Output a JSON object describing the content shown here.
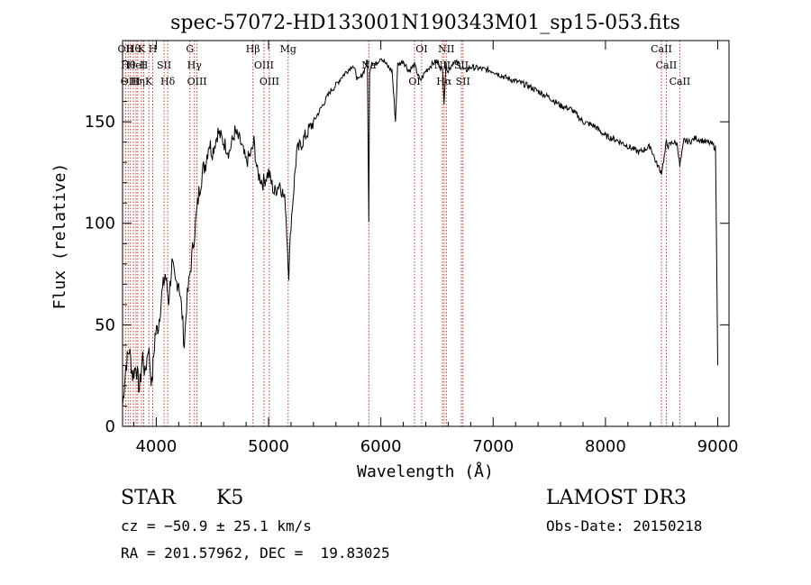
{
  "chart_data": {
    "type": "line",
    "title": "spec-57072-HD133001N190343M01_sp15-053.fits",
    "xlabel": "Wavelength (Å)",
    "ylabel": "Flux (relative)",
    "xlim": [
      3700,
      9100
    ],
    "ylim": [
      0,
      190
    ],
    "xticks": [
      4000,
      5000,
      6000,
      7000,
      8000,
      9000
    ],
    "yticks": [
      0,
      50,
      100,
      150
    ],
    "grid": false,
    "series": [
      {
        "name": "flux",
        "x": [
          3700,
          3730,
          3760,
          3790,
          3820,
          3850,
          3880,
          3900,
          3930,
          3960,
          3990,
          4020,
          4050,
          4080,
          4110,
          4140,
          4170,
          4200,
          4230,
          4250,
          4270,
          4290,
          4310,
          4330,
          4350,
          4380,
          4410,
          4440,
          4470,
          4500,
          4550,
          4600,
          4650,
          4700,
          4750,
          4800,
          4850,
          4870,
          4900,
          4950,
          5000,
          5050,
          5100,
          5150,
          5180,
          5200,
          5250,
          5300,
          5350,
          5400,
          5450,
          5500,
          5550,
          5600,
          5650,
          5700,
          5750,
          5800,
          5850,
          5880,
          5893,
          5900,
          5920,
          5950,
          6000,
          6050,
          6100,
          6130,
          6150,
          6200,
          6250,
          6300,
          6350,
          6400,
          6450,
          6500,
          6550,
          6563,
          6580,
          6600,
          6650,
          6700,
          6750,
          6800,
          6900,
          7000,
          7100,
          7200,
          7300,
          7400,
          7500,
          7600,
          7700,
          7800,
          7900,
          8000,
          8100,
          8200,
          8300,
          8400,
          8450,
          8498,
          8530,
          8542,
          8560,
          8600,
          8640,
          8662,
          8700,
          8750,
          8800,
          8850,
          8900,
          8950,
          8980,
          9000
        ],
        "y": [
          10,
          30,
          38,
          25,
          30,
          18,
          35,
          25,
          40,
          20,
          45,
          50,
          65,
          75,
          62,
          80,
          70,
          72,
          55,
          40,
          60,
          70,
          80,
          90,
          100,
          115,
          125,
          130,
          140,
          135,
          145,
          140,
          135,
          145,
          140,
          130,
          135,
          140,
          125,
          120,
          125,
          115,
          120,
          110,
          75,
          100,
          135,
          140,
          145,
          150,
          155,
          160,
          165,
          168,
          172,
          175,
          178,
          170,
          175,
          180,
          100,
          175,
          180,
          178,
          182,
          178,
          175,
          150,
          178,
          180,
          175,
          178,
          170,
          175,
          178,
          180,
          175,
          160,
          178,
          175,
          180,
          178,
          175,
          177,
          176,
          175,
          172,
          170,
          168,
          165,
          162,
          158,
          156,
          150,
          148,
          143,
          141,
          138,
          135,
          138,
          130,
          125,
          135,
          140,
          138,
          140,
          139,
          128,
          141,
          140,
          142,
          141,
          140,
          139,
          137,
          30
        ]
      }
    ],
    "lines": [
      {
        "w": 3727,
        "labels": [
          "OII"
        ]
      },
      {
        "w": 3750,
        "labels": [
          "Hθ"
        ]
      },
      {
        "w": 3770,
        "labels": [
          "OIII"
        ]
      },
      {
        "w": 3797,
        "labels": [
          "Hθ"
        ]
      },
      {
        "w": 3820,
        "labels": [
          "HeI"
        ]
      },
      {
        "w": 3835,
        "labels": [
          "Hη"
        ]
      },
      {
        "w": 3869,
        "labels": [
          "K"
        ]
      },
      {
        "w": 3889,
        "labels": [
          "H"
        ]
      },
      {
        "w": 3934,
        "labels": [
          "K"
        ]
      },
      {
        "w": 3969,
        "labels": [
          "H"
        ]
      },
      {
        "w": 4070,
        "labels": [
          "SII"
        ]
      },
      {
        "w": 4102,
        "labels": [
          "Hδ"
        ]
      },
      {
        "w": 4300,
        "labels": [
          "G"
        ]
      },
      {
        "w": 4340,
        "labels": [
          "Hγ"
        ]
      },
      {
        "w": 4363,
        "labels": [
          "OIII"
        ]
      },
      {
        "w": 4861,
        "labels": [
          "Hβ"
        ]
      },
      {
        "w": 4959,
        "labels": [
          "OIII"
        ]
      },
      {
        "w": 5007,
        "labels": [
          "OIII"
        ]
      },
      {
        "w": 5175,
        "labels": [
          "Mg"
        ]
      },
      {
        "w": 5893,
        "labels": [
          "Na"
        ]
      },
      {
        "w": 6300,
        "labels": [
          "OI"
        ]
      },
      {
        "w": 6363,
        "labels": [
          "OI"
        ]
      },
      {
        "w": 6548,
        "labels": [
          "NII"
        ]
      },
      {
        "w": 6563,
        "labels": [
          "Hα"
        ]
      },
      {
        "w": 6583,
        "labels": [
          "NII"
        ]
      },
      {
        "w": 6717,
        "labels": [
          "SII"
        ]
      },
      {
        "w": 6731,
        "labels": [
          "SII"
        ]
      },
      {
        "w": 8498,
        "labels": [
          "CaII"
        ]
      },
      {
        "w": 8542,
        "labels": [
          "CaII"
        ]
      },
      {
        "w": 8662,
        "labels": [
          "CaII"
        ]
      }
    ]
  },
  "info": {
    "object_class": "STAR",
    "subclass": "K5",
    "survey": "LAMOST DR3",
    "cz": "cz = −50.9 ± 25.1 km/s",
    "obs_date": "Obs-Date: 20150218",
    "coords": "RA = 201.57962, DEC =  19.83025"
  }
}
